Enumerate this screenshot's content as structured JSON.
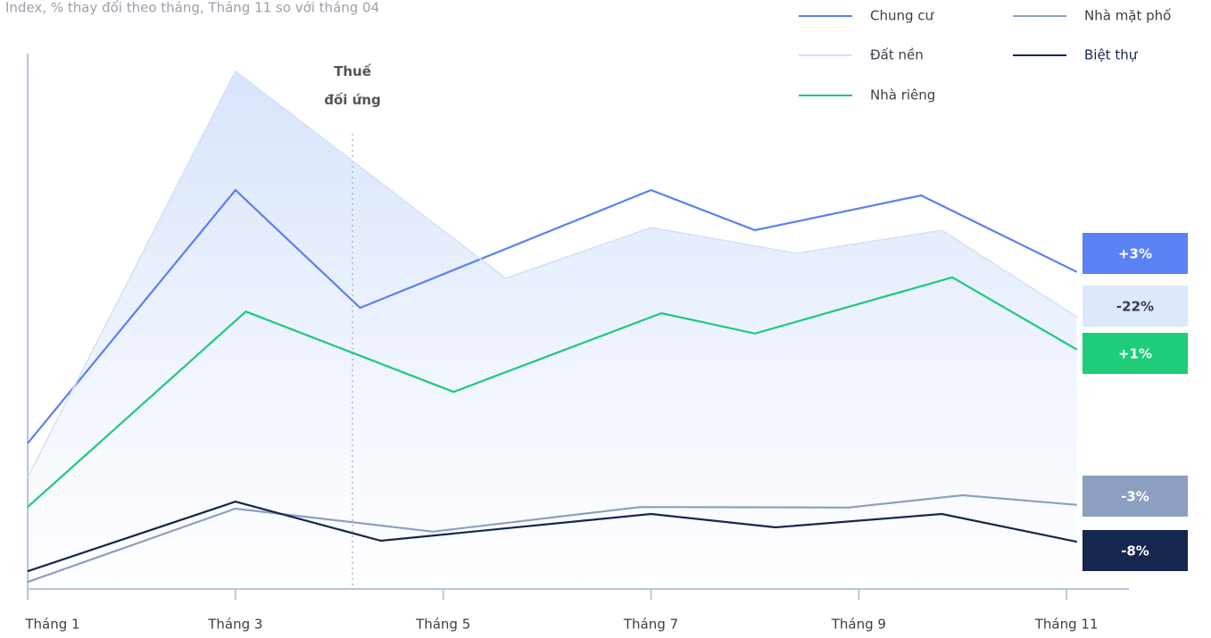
{
  "chart_data": {
    "type": "line",
    "title": "Index, % thay đổi theo tháng, Tháng 11 so với tháng 04",
    "annotation": "Thuế\nđối ứng",
    "xlim": [
      1,
      11.6
    ],
    "xticks": [
      {
        "value": 1,
        "label": "Tháng 1"
      },
      {
        "value": 3,
        "label": "Tháng 3"
      },
      {
        "value": 5,
        "label": "Tháng 5"
      },
      {
        "value": 7,
        "label": "Tháng 7"
      },
      {
        "value": 9,
        "label": "Tháng 9"
      },
      {
        "value": 11,
        "label": "Tháng 11"
      }
    ],
    "ylim": [
      0,
      100
    ],
    "series": [
      {
        "name": "Chung cư",
        "color": "#5b7ff0",
        "label_color": "#5b82f5",
        "label_text_color": "#ffffff",
        "end_label": "+3%",
        "x": [
          1,
          3,
          4.2,
          7,
          8,
          9.6,
          11.1
        ],
        "values": [
          27.2,
          74.5,
          52.5,
          74.5,
          67,
          73.5,
          59.2
        ]
      },
      {
        "name": "Đất nền",
        "color": "#d3e0f8",
        "label_color": "#dde8fb",
        "label_text_color": "#3a3f4a",
        "end_label": "-22%",
        "area": true,
        "x": [
          1,
          3,
          5.6,
          7,
          8.4,
          9.8,
          11.1
        ],
        "values": [
          20.8,
          96.7,
          58,
          67.5,
          62.7,
          67,
          50.8
        ]
      },
      {
        "name": "Nhà riêng",
        "color": "#1fc97a",
        "label_color": "#1fcc7a",
        "label_text_color": "#ffffff",
        "end_label": "+1%",
        "x": [
          1,
          3.1,
          5.1,
          7.1,
          8,
          9.9,
          11.1
        ],
        "values": [
          15.3,
          51.8,
          36.8,
          51.5,
          47.7,
          58.2,
          44.7
        ]
      },
      {
        "name": "Nhà mặt phố",
        "color": "#8d9fc0",
        "label_color": "#8d9fc0",
        "label_text_color": "#ffffff",
        "end_label": "-3%",
        "x": [
          1,
          3,
          4.9,
          6.9,
          8.9,
          10,
          11.1
        ],
        "values": [
          1.3,
          15,
          10.7,
          15.3,
          15.2,
          17.5,
          15.7
        ]
      },
      {
        "name": "Biệt thự",
        "color": "#15264f",
        "label_color": "#15264f",
        "label_text_color": "#ffffff",
        "end_label": "-8%",
        "x": [
          1,
          3,
          4.4,
          7,
          8.2,
          9.8,
          11.1
        ],
        "values": [
          3.3,
          16.3,
          9,
          14,
          11.5,
          14,
          8.8
        ]
      }
    ]
  }
}
